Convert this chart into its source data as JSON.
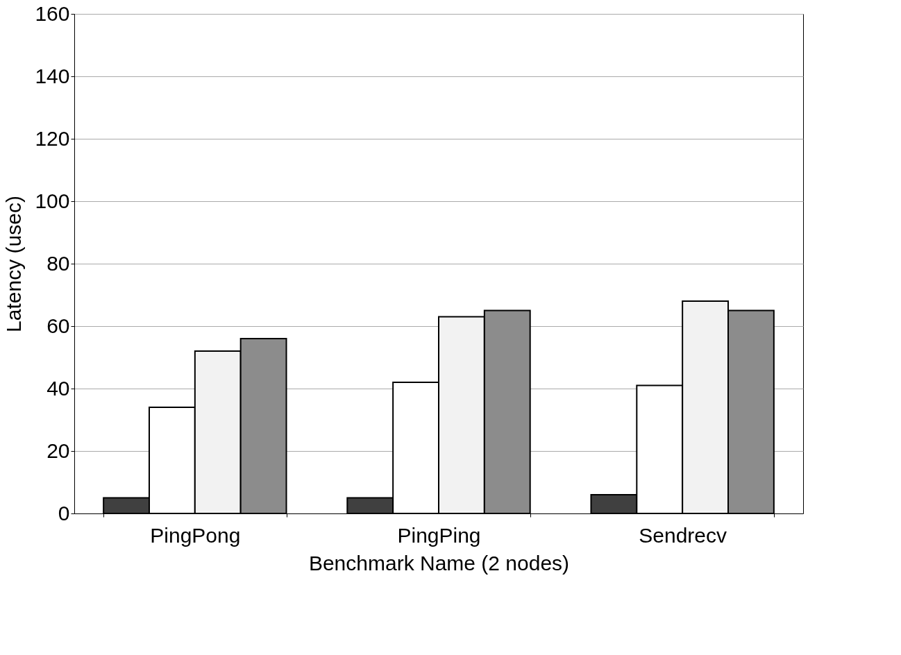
{
  "chart_data": {
    "type": "bar",
    "xlabel": "Benchmark Name (2 nodes)",
    "ylabel": "Latency (usec)",
    "categories": [
      "PingPong",
      "PingPing",
      "Sendrecv"
    ],
    "series": [
      {
        "color": "#404040",
        "values": [
          5,
          5,
          6
        ]
      },
      {
        "color": "#ffffff",
        "values": [
          34,
          42,
          41
        ]
      },
      {
        "color": "#f2f2f2",
        "values": [
          52,
          63,
          68
        ]
      },
      {
        "color": "#8c8c8c",
        "values": [
          56,
          65,
          65
        ]
      }
    ],
    "ylim": [
      0,
      160
    ],
    "yticks": [
      0,
      20,
      40,
      60,
      80,
      100,
      120,
      140,
      160
    ],
    "grid": "y",
    "legend": false
  }
}
